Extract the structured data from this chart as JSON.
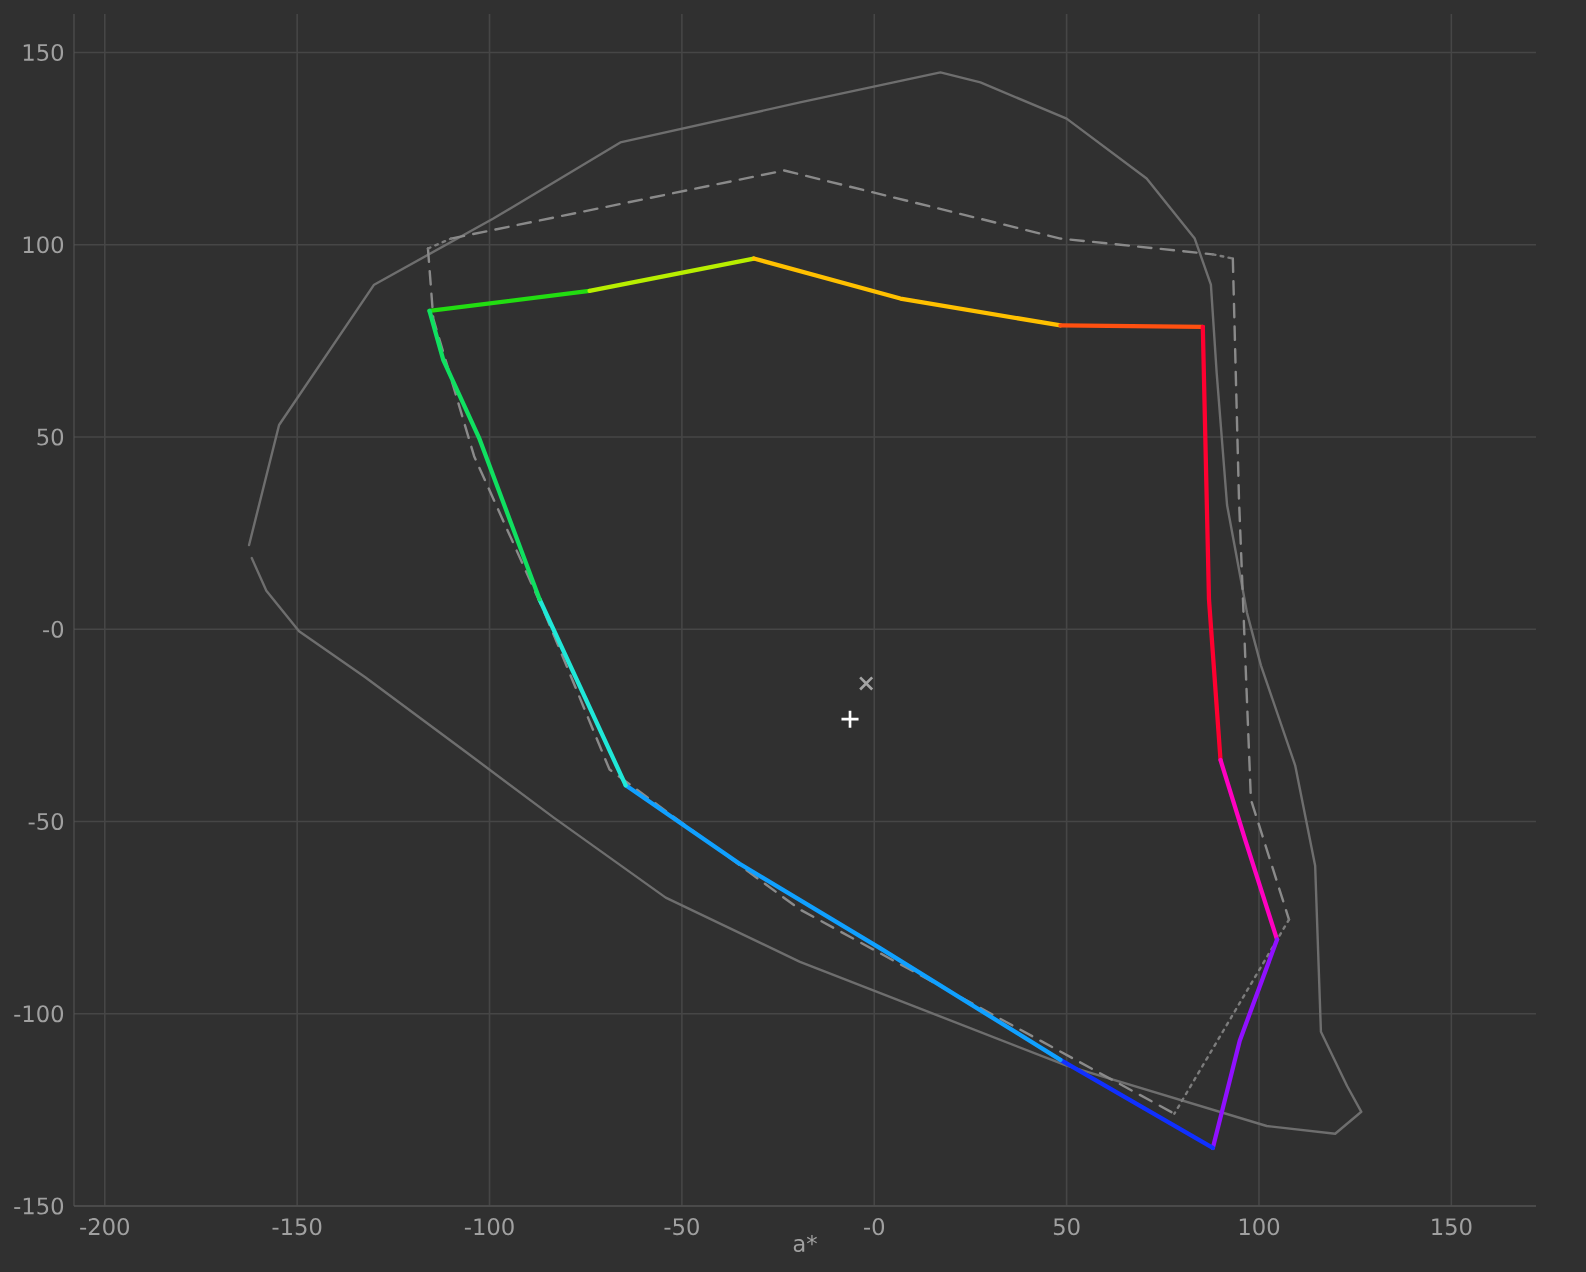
{
  "chart_data": {
    "type": "line",
    "xlabel": "a*",
    "xlim": [
      -208,
      172
    ],
    "ylim": [
      -150,
      160
    ],
    "xticks": [
      -200,
      -150,
      -100,
      -50,
      {
        "value": 0,
        "label": "-0"
      },
      50,
      100,
      150
    ],
    "yticks": [
      -150,
      -100,
      -50,
      {
        "value": 0,
        "label": "-0"
      },
      50,
      100,
      150
    ],
    "grid": true,
    "series": [
      {
        "color": "#6e6e6e",
        "line_style": "solid",
        "x": [
          -162.5,
          -154.7,
          -130,
          -99,
          -66,
          -19.3,
          17.2,
          27.6,
          50,
          70.8,
          83.3,
          87.5,
          89,
          91.7,
          96.9,
          100.5,
          109.4,
          114.6,
          116.1,
          122.9,
          126.6,
          119.8,
          102,
          50,
          -19.3,
          -54.2,
          -83.3,
          -106.3,
          -132.3,
          -149.5,
          -158,
          -161.8
        ],
        "values": [
          21.9,
          53.1,
          89.6,
          106.8,
          126.6,
          137,
          144.8,
          142.2,
          132.8,
          117.2,
          101.6,
          89.6,
          66.7,
          32.3,
          4.2,
          -9.4,
          -35.4,
          -61.5,
          -104.7,
          -118.8,
          -125.5,
          -131.2,
          -129.2,
          -113.5,
          -86.5,
          -69.8,
          -49,
          -31.8,
          -12.5,
          -0.5,
          10,
          18.5
        ]
      },
      {
        "color": "#8a8a8a",
        "line_style": "dashed",
        "x": [
          -110,
          -23.4,
          48.4,
          88,
          null,
          93.2,
          94.8,
          97.9,
          107.8,
          null,
          -116,
          -114.6,
          -104,
          -86,
          -68.8,
          -19.3,
          78
        ],
        "values": [
          101.6,
          119.3,
          101.6,
          97.5,
          null,
          96.4,
          33.9,
          -44.3,
          -75.5,
          null,
          99,
          80.7,
          45,
          5,
          -36.5,
          -72.9,
          -126
        ]
      },
      {
        "color": "#7c7c7c",
        "line_style": "dotted",
        "x": [
          -116,
          -110,
          null,
          88,
          93.2,
          null,
          107.8,
          78
        ],
        "values": [
          99,
          101.6,
          null,
          97.5,
          96.4,
          null,
          -75.5,
          -126
        ]
      },
      {
        "color": "#22dd11",
        "x": [
          -115.6,
          -74
        ],
        "values": [
          82.8,
          88
        ]
      },
      {
        "color": "#b8ee00",
        "x": [
          -74,
          -31.3
        ],
        "values": [
          88,
          96.4
        ]
      },
      {
        "color": "#ffc000",
        "x": [
          -31.3,
          6.8,
          48.4
        ],
        "values": [
          96.4,
          86,
          79
        ]
      },
      {
        "color": "#ff5010",
        "x": [
          48.4,
          85.4
        ],
        "values": [
          79,
          78.6
        ]
      },
      {
        "color": "#ff0030",
        "x": [
          85.4,
          87,
          90
        ],
        "values": [
          78.6,
          7.8,
          -34
        ]
      },
      {
        "color": "#ff00c0",
        "x": [
          90,
          96.4,
          104.7
        ],
        "values": [
          -34,
          -54.7,
          -80.7
        ]
      },
      {
        "color": "#9010ff",
        "x": [
          104.7,
          95,
          88
        ],
        "values": [
          -80.7,
          -107,
          -134.9
        ]
      },
      {
        "color": "#1030ff",
        "x": [
          88,
          48.4
        ],
        "values": [
          -134.9,
          -112
        ]
      },
      {
        "color": "#10a0ff",
        "x": [
          48.4,
          1.6,
          -35,
          -64.6
        ],
        "values": [
          -112,
          -83,
          -61,
          -40.6
        ]
      },
      {
        "color": "#20e8d8",
        "x": [
          -64.6,
          -87
        ],
        "values": [
          -40.6,
          7.8
        ]
      },
      {
        "color": "#10e060",
        "x": [
          -87,
          -102.6,
          -112,
          -115.6
        ],
        "values": [
          7.8,
          49.5,
          70,
          82.8
        ]
      },
      {
        "type": "scatter",
        "marker": "cross",
        "color": "#a4a4a4",
        "x": [
          -2.1
        ],
        "values": [
          -14.1
        ]
      },
      {
        "type": "scatter",
        "marker": "plus",
        "color": "#ffffff",
        "x": [
          -6.3
        ],
        "values": [
          -23.4
        ]
      }
    ]
  }
}
